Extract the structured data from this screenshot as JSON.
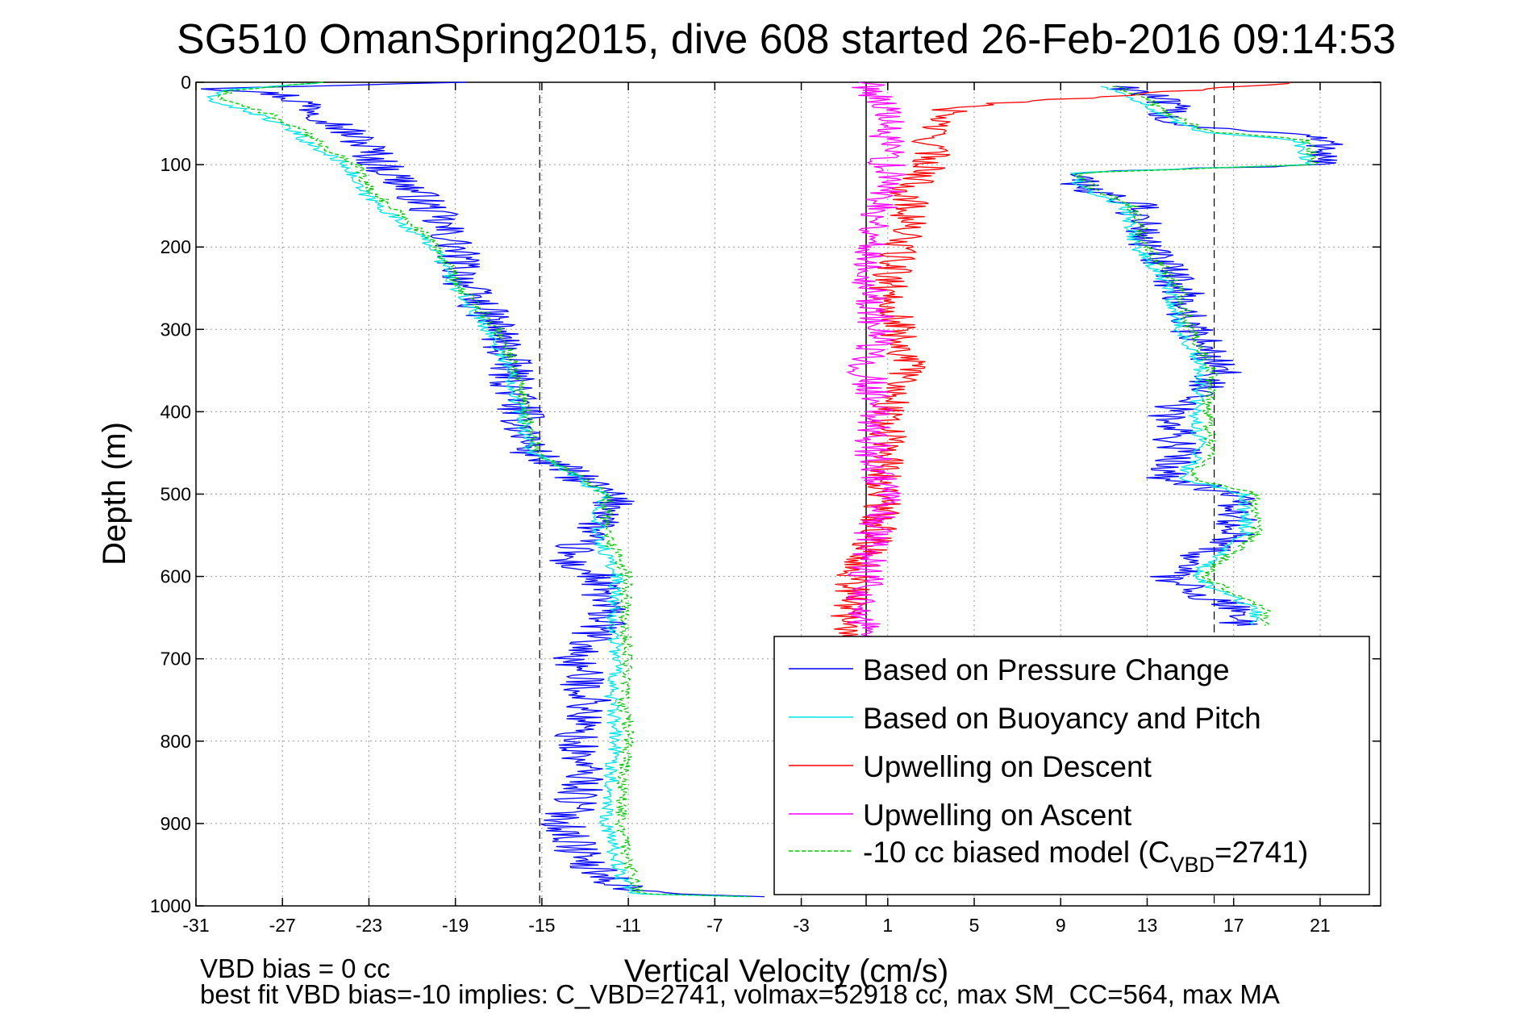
{
  "chart_data": {
    "type": "line",
    "title": "SG510 OmanSpring2015, dive 608 started 26-Feb-2016 09:14:53",
    "xlabel": "Vertical Velocity (cm/s)",
    "ylabel": "Depth (m)",
    "xlim": [
      -31,
      23.8
    ],
    "ylim": [
      0,
      1000
    ],
    "y_reversed": true,
    "grid": "on (dotted)",
    "legend_position": "bottom-right",
    "xticks": [
      -31,
      -27,
      -23,
      -19,
      -15,
      -11,
      -7,
      -3,
      1,
      5,
      9,
      13,
      17,
      21
    ],
    "yticks": [
      0,
      100,
      200,
      300,
      400,
      500,
      600,
      700,
      800,
      900,
      1000
    ],
    "reference_lines": {
      "solid_x": 0,
      "dashed_x": [
        -15.1,
        16.1
      ]
    },
    "series": [
      {
        "name": "Based on Pressure Change",
        "color": "#0000ff",
        "style": "solid",
        "noise": 1.1,
        "segments": [
          {
            "depth": [
              0,
              8,
              15,
              25,
              40,
              60,
              80,
              100,
              130,
              160,
              200,
              250,
              300,
              350,
              400,
              450,
              470,
              500,
              520,
              550,
              580,
              600,
              650,
              700,
              750,
              800,
              850,
              900,
              950,
              980,
              990
            ],
            "velocity": [
              -18,
              -30,
              -27,
              -26,
              -25,
              -24,
              -23,
              -22.5,
              -21,
              -20,
              -19,
              -18.5,
              -17,
              -16.5,
              -16,
              -15.5,
              -14,
              -12,
              -11.5,
              -13,
              -14,
              -12.5,
              -12,
              -13.5,
              -12.8,
              -13.5,
              -13,
              -14,
              -13,
              -11,
              -5
            ]
          },
          {
            "depth": [
              5,
              15,
              30,
              50,
              65,
              80,
              100,
              110,
              130,
              150,
              200,
              250,
              300,
              350,
              400,
              450,
              480,
              500,
              550,
              600,
              640,
              660
            ],
            "velocity": [
              12,
              13,
              14,
              14,
              20.5,
              21.5,
              21,
              9,
              10.5,
              12.5,
              13,
              14.5,
              15,
              16.5,
              14,
              14.5,
              14,
              17,
              17,
              14,
              17,
              17.5
            ]
          }
        ]
      },
      {
        "name": "Based on Buoyancy and Pitch",
        "color": "#00e5e5",
        "style": "solid",
        "noise": 0.35,
        "segments": [
          {
            "depth": [
              0,
              10,
              20,
              40,
              60,
              80,
              100,
              130,
              160,
              200,
              250,
              300,
              350,
              400,
              450,
              470,
              500,
              550,
              600,
              650,
              700,
              750,
              800,
              850,
              900,
              950,
              985,
              990
            ],
            "velocity": [
              -25,
              -30,
              -30.5,
              -28,
              -26.5,
              -25.5,
              -24,
              -23.5,
              -22,
              -20,
              -19,
              -17.5,
              -16.5,
              -16,
              -15.5,
              -14,
              -12.2,
              -12.5,
              -11.5,
              -11.8,
              -11.5,
              -11.8,
              -11.6,
              -11.8,
              -12,
              -11.5,
              -11,
              -4
            ]
          },
          {
            "depth": [
              5,
              20,
              40,
              60,
              70,
              100,
              110,
              130,
              150,
              200,
              250,
              300,
              350,
              400,
              450,
              480,
              500,
              550,
              600,
              640,
              660
            ],
            "velocity": [
              11,
              12.5,
              13.5,
              15.5,
              20,
              20.5,
              9.5,
              10,
              12,
              12.5,
              14,
              14.5,
              15.5,
              15.2,
              15.5,
              14.5,
              17.5,
              17.5,
              15,
              18,
              18
            ]
          }
        ]
      },
      {
        "name": "Upwelling on Descent",
        "color": "#ff0000",
        "style": "solid",
        "noise": 0.9,
        "segments": [
          {
            "depth": [
              0,
              30,
              60,
              100,
              130,
              170,
              200,
              250,
              300,
              350,
              400,
              450,
              500,
              550,
              600,
              650,
              680
            ],
            "velocity": [
              20,
              4,
              3,
              3,
              2,
              2,
              1.5,
              1,
              1.5,
              2,
              1,
              1,
              0.8,
              0.5,
              -0.5,
              -0.8,
              -0.5
            ]
          }
        ]
      },
      {
        "name": "Upwelling on Ascent",
        "color": "#ff00ff",
        "style": "solid",
        "noise": 0.9,
        "segments": [
          {
            "depth": [
              0,
              30,
              60,
              100,
              130,
              170,
              200,
              250,
              300,
              350,
              400,
              450,
              500,
              550,
              600,
              650,
              680
            ],
            "velocity": [
              0,
              1,
              0.8,
              1,
              1,
              0.5,
              0.2,
              0.2,
              0.5,
              0,
              0.5,
              0.3,
              0.8,
              0.3,
              0,
              -0.2,
              -0.2
            ]
          }
        ]
      },
      {
        "name": "-10 cc biased model (C_VBD=2741)",
        "color": "#00c800",
        "style": "dashed",
        "noise": 0.3,
        "segments": [
          {
            "depth": [
              0,
              10,
              20,
              40,
              60,
              80,
              100,
              130,
              160,
              200,
              250,
              300,
              350,
              400,
              450,
              470,
              500,
              550,
              600,
              650,
              700,
              750,
              800,
              850,
              900,
              950,
              985,
              990
            ],
            "velocity": [
              -25,
              -29.5,
              -29.8,
              -27.5,
              -26,
              -25,
              -23.5,
              -23,
              -21.5,
              -19.8,
              -18.8,
              -17,
              -16.2,
              -15.8,
              -15.2,
              -13.8,
              -12,
              -12,
              -11,
              -11.2,
              -11,
              -11.2,
              -11,
              -11.3,
              -11.3,
              -11,
              -10.5,
              -4
            ]
          },
          {
            "depth": [
              5,
              20,
              40,
              60,
              70,
              100,
              110,
              130,
              150,
              200,
              250,
              300,
              350,
              400,
              450,
              480,
              500,
              550,
              600,
              640,
              660
            ],
            "velocity": [
              11.5,
              13,
              14,
              16,
              20.3,
              20.8,
              9.8,
              10.5,
              12.3,
              13,
              14.5,
              15,
              16,
              15.8,
              16,
              15,
              18,
              18,
              15.5,
              18.5,
              18.5
            ]
          }
        ]
      }
    ],
    "legend_entries": [
      {
        "label": "Based on Pressure Change",
        "color": "#0000ff",
        "style": "solid"
      },
      {
        "label": "Based on Buoyancy and Pitch",
        "color": "#00e5e5",
        "style": "solid"
      },
      {
        "label": "Upwelling on Descent",
        "color": "#ff0000",
        "style": "solid"
      },
      {
        "label": "Upwelling on Ascent",
        "color": "#ff00ff",
        "style": "solid"
      },
      {
        "label_prefix": "-10 cc biased model (C",
        "label_sub": "VBD",
        "label_suffix": "=2741)",
        "color": "#00c800",
        "style": "dashed"
      }
    ],
    "footnotes": [
      "VBD bias = 0 cc",
      "best fit VBD bias=-10 implies: C_VBD=2741, volmax=52918 cc, max SM_CC=564, max MA"
    ]
  }
}
